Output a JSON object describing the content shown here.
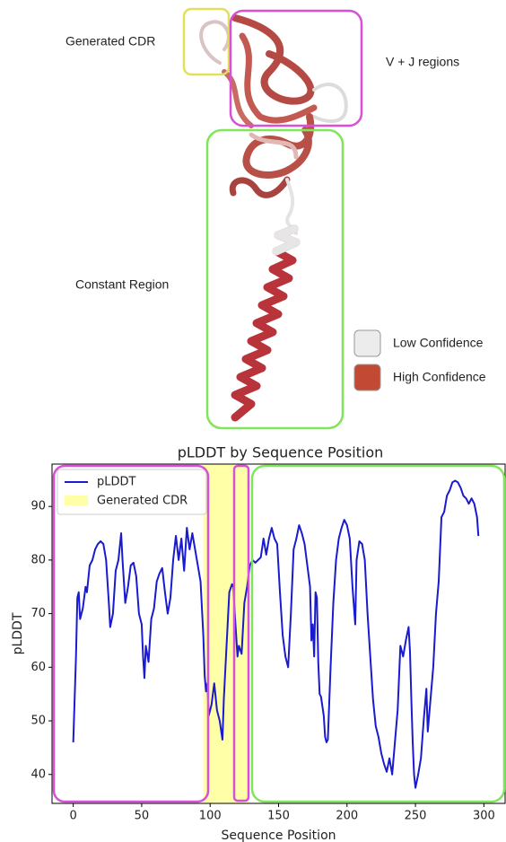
{
  "structure": {
    "labels": [
      "Generated CDR",
      "V + J regions",
      "Constant Region"
    ],
    "legend": [
      {
        "name": "Low Confidence",
        "color": "#ececec"
      },
      {
        "name": "High Confidence",
        "color": "#c24a35"
      }
    ]
  },
  "chart_data": {
    "type": "line",
    "title": "pLDDT by Sequence Position",
    "x_label": "Sequence Position",
    "y_label": "pLDDT",
    "x": [
      0,
      2,
      3,
      4,
      5,
      7,
      9,
      10,
      12,
      14,
      16,
      18,
      20,
      22,
      24,
      26,
      27,
      29,
      31,
      33,
      35,
      36,
      38,
      40,
      42,
      44,
      46,
      48,
      50,
      51,
      52,
      53,
      55,
      57,
      59,
      61,
      63,
      65,
      67,
      69,
      71,
      73,
      75,
      77,
      79,
      81,
      83,
      85,
      87,
      89,
      91,
      93,
      95,
      96,
      97,
      98,
      99,
      101,
      103,
      105,
      107,
      109,
      110,
      112,
      114,
      116,
      117,
      118,
      120,
      121,
      123,
      125,
      127,
      129,
      131,
      133,
      135,
      137,
      139,
      141,
      143,
      145,
      147,
      149,
      151,
      153,
      155,
      157,
      159,
      161,
      163,
      165,
      167,
      169,
      171,
      173,
      174,
      175,
      176,
      177,
      178,
      179,
      180,
      181,
      183,
      184,
      185,
      186,
      188,
      190,
      192,
      194,
      196,
      198,
      200,
      202,
      204,
      206,
      207,
      209,
      211,
      213,
      215,
      217,
      219,
      221,
      223,
      225,
      227,
      229,
      231,
      233,
      235,
      237,
      239,
      241,
      243,
      245,
      246,
      247,
      248,
      249,
      250,
      252,
      254,
      256,
      258,
      259,
      261,
      263,
      265,
      267,
      269,
      271,
      273,
      275,
      277,
      279,
      281,
      283,
      285,
      287,
      289,
      291,
      293,
      295,
      296
    ],
    "series": [
      {
        "name": "pLDDT",
        "color": "#1a1ad0",
        "values": [
          46,
          62,
          73,
          74,
          69,
          71,
          75,
          74,
          79,
          80,
          82,
          83,
          83.5,
          83,
          80,
          72,
          67.5,
          70,
          78,
          80,
          85,
          80,
          72,
          75,
          79,
          79.5,
          77,
          70,
          68,
          62,
          58,
          64,
          61,
          69,
          71,
          76,
          77.5,
          78.5,
          74,
          70,
          73,
          80,
          84.5,
          80,
          84,
          78,
          86,
          82,
          85,
          82,
          79,
          76,
          66,
          58.5,
          55.5,
          57,
          51,
          53,
          57,
          52,
          50,
          46.5,
          54,
          64,
          74,
          75.5,
          75,
          70,
          62,
          64,
          62.5,
          72,
          75,
          79,
          80,
          79.5,
          80,
          80.5,
          84,
          81,
          84,
          86,
          84,
          83,
          74,
          66,
          62,
          60,
          70,
          82,
          84,
          86.5,
          85,
          83,
          79,
          75,
          65,
          68,
          62,
          74,
          73,
          61,
          55,
          54.5,
          51,
          47,
          46,
          46.5,
          60,
          72,
          80,
          84,
          86,
          87.5,
          86.5,
          84,
          75,
          68,
          80,
          83.5,
          83,
          80,
          70,
          62,
          54,
          49,
          47,
          44,
          42,
          40.5,
          43,
          40,
          46,
          52,
          64,
          62,
          65,
          67.5,
          63,
          54,
          46,
          40,
          37.5,
          40,
          43,
          50,
          56,
          48,
          54,
          60,
          70,
          76,
          88,
          89,
          92,
          93,
          94.5,
          94.8,
          94.5,
          93.5,
          92,
          91.5,
          90.5,
          91.5,
          90.5,
          88,
          84.5
        ]
      }
    ],
    "highlight": {
      "name": "Generated CDR",
      "color": "#ffffa8",
      "x": [
        95,
        128
      ]
    },
    "xlim": [
      -15.5,
      315.5
    ],
    "ylim": [
      34.6,
      97.9
    ],
    "xticks": [
      0,
      50,
      100,
      150,
      200,
      250,
      300
    ],
    "yticks": [
      40,
      50,
      60,
      70,
      80,
      90
    ],
    "legend": "upper left"
  }
}
